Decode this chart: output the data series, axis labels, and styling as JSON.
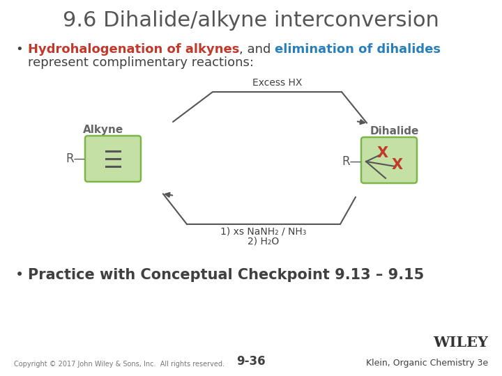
{
  "title": "9.6 Dihalide/alkyne interconversion",
  "title_fontsize": 22,
  "title_color": "#555555",
  "bg_color": "#ffffff",
  "bullet1_part1": "Hydrohalogenation of alkynes",
  "bullet1_part2": ", and ",
  "bullet1_part3": "elimination of dihalides",
  "bullet1_color1": "#c0392b",
  "bullet1_color2": "#404040",
  "bullet1_color3": "#2980b9",
  "bullet1_line2": "represent complimentary reactions:",
  "bullet1_fontsize": 13,
  "bullet2": "Practice with Conceptual Checkpoint 9.13 – 9.15",
  "bullet2_fontsize": 15,
  "footer_copyright": "Copyright © 2017 John Wiley & Sons, Inc.  All rights reserved.",
  "footer_page": "9-36",
  "footer_publisher": "Klein, Organic Chemistry 3e",
  "footer_wiley": "WILEY",
  "alkyne_label": "Alkyne",
  "dihalide_label": "Dihalide",
  "top_arrow_label": "Excess HX",
  "bottom_arrow_line1": "1) xs NaNH₂ / NH₃",
  "bottom_arrow_line2": "2) H₂O",
  "green_border_color": "#7ab648",
  "green_fill_color": "#c5e0a5",
  "x_color": "#c0392b",
  "r_color": "#555555",
  "arrow_color": "#555555",
  "line_color": "#555555"
}
